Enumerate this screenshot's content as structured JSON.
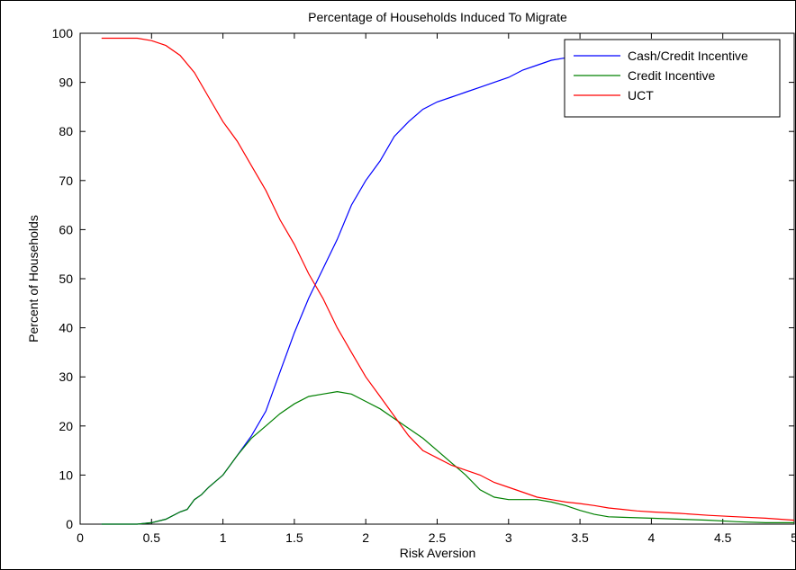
{
  "chart_data": {
    "type": "line",
    "title": "Percentage of Households Induced To Migrate",
    "xlabel": "Risk Aversion",
    "ylabel": "Percent of Households",
    "xlim": [
      0,
      5
    ],
    "ylim": [
      0,
      100
    ],
    "xticks": [
      0,
      0.5,
      1,
      1.5,
      2,
      2.5,
      3,
      3.5,
      4,
      4.5,
      5
    ],
    "xtick_labels": [
      "0",
      "0.5",
      "1",
      "1.5",
      "2",
      "2.5",
      "3",
      "3.5",
      "4",
      "4.5",
      "5"
    ],
    "yticks": [
      0,
      10,
      20,
      30,
      40,
      50,
      60,
      70,
      80,
      90,
      100
    ],
    "ytick_labels": [
      "0",
      "10",
      "20",
      "30",
      "40",
      "50",
      "60",
      "70",
      "80",
      "90",
      "100"
    ],
    "grid": false,
    "legend_position": "top-right",
    "series": [
      {
        "name": "Cash/Credit Incentive",
        "color": "#0000ff",
        "x": [
          0.15,
          0.2,
          0.3,
          0.4,
          0.5,
          0.6,
          0.7,
          0.75,
          0.8,
          0.85,
          0.9,
          1.0,
          1.1,
          1.2,
          1.3,
          1.4,
          1.5,
          1.6,
          1.7,
          1.8,
          1.9,
          2.0,
          2.1,
          2.2,
          2.3,
          2.4,
          2.5,
          2.6,
          2.7,
          2.8,
          2.9,
          3.0,
          3.1,
          3.2,
          3.3,
          3.4,
          3.45
        ],
        "y": [
          0,
          0,
          0,
          0,
          0.3,
          1,
          2.5,
          3,
          5,
          6,
          7.5,
          10,
          14,
          18,
          23,
          31,
          39,
          46,
          52,
          58,
          65,
          70,
          74,
          79,
          82,
          84.5,
          86,
          87,
          88,
          89,
          90,
          91,
          92.5,
          93.5,
          94.5,
          95,
          95
        ]
      },
      {
        "name": "Credit Incentive",
        "color": "#008000",
        "x": [
          0.15,
          0.2,
          0.3,
          0.4,
          0.5,
          0.6,
          0.7,
          0.75,
          0.8,
          0.85,
          0.9,
          1.0,
          1.1,
          1.2,
          1.3,
          1.4,
          1.5,
          1.6,
          1.7,
          1.8,
          1.9,
          2.0,
          2.1,
          2.2,
          2.3,
          2.4,
          2.5,
          2.6,
          2.7,
          2.8,
          2.9,
          3.0,
          3.1,
          3.2,
          3.3,
          3.4,
          3.5,
          3.6,
          3.7,
          3.8,
          3.9,
          4.0,
          4.2,
          4.4,
          4.6,
          4.8,
          5.0
        ],
        "y": [
          0,
          0,
          0,
          0,
          0.3,
          1,
          2.5,
          3,
          5,
          6,
          7.5,
          10,
          14,
          17.5,
          20,
          22.5,
          24.5,
          26,
          26.5,
          27,
          26.5,
          25,
          23.5,
          21.5,
          19.5,
          17.5,
          15,
          12.5,
          10,
          7,
          5.5,
          5,
          5,
          5,
          4.5,
          3.8,
          2.8,
          2,
          1.5,
          1.4,
          1.3,
          1.2,
          1,
          0.8,
          0.5,
          0.3,
          0.3
        ]
      },
      {
        "name": "UCT",
        "color": "#ff0000",
        "x": [
          0.15,
          0.2,
          0.3,
          0.4,
          0.5,
          0.6,
          0.7,
          0.8,
          0.9,
          1.0,
          1.1,
          1.2,
          1.3,
          1.4,
          1.5,
          1.6,
          1.7,
          1.8,
          1.9,
          2.0,
          2.1,
          2.2,
          2.3,
          2.4,
          2.5,
          2.6,
          2.7,
          2.8,
          2.9,
          3.0,
          3.1,
          3.2,
          3.3,
          3.4,
          3.5,
          3.6,
          3.7,
          3.8,
          3.9,
          4.0,
          4.2,
          4.4,
          4.6,
          4.8,
          5.0
        ],
        "y": [
          99,
          99,
          99,
          99,
          98.5,
          97.5,
          95.5,
          92,
          87,
          82,
          78,
          73,
          68,
          62,
          57,
          51,
          46,
          40,
          35,
          30,
          26,
          22,
          18,
          15,
          13.5,
          12,
          11,
          10,
          8.5,
          7.5,
          6.5,
          5.5,
          5,
          4.5,
          4.2,
          3.8,
          3.3,
          3,
          2.7,
          2.5,
          2.2,
          1.8,
          1.5,
          1.2,
          0.8
        ]
      }
    ]
  }
}
